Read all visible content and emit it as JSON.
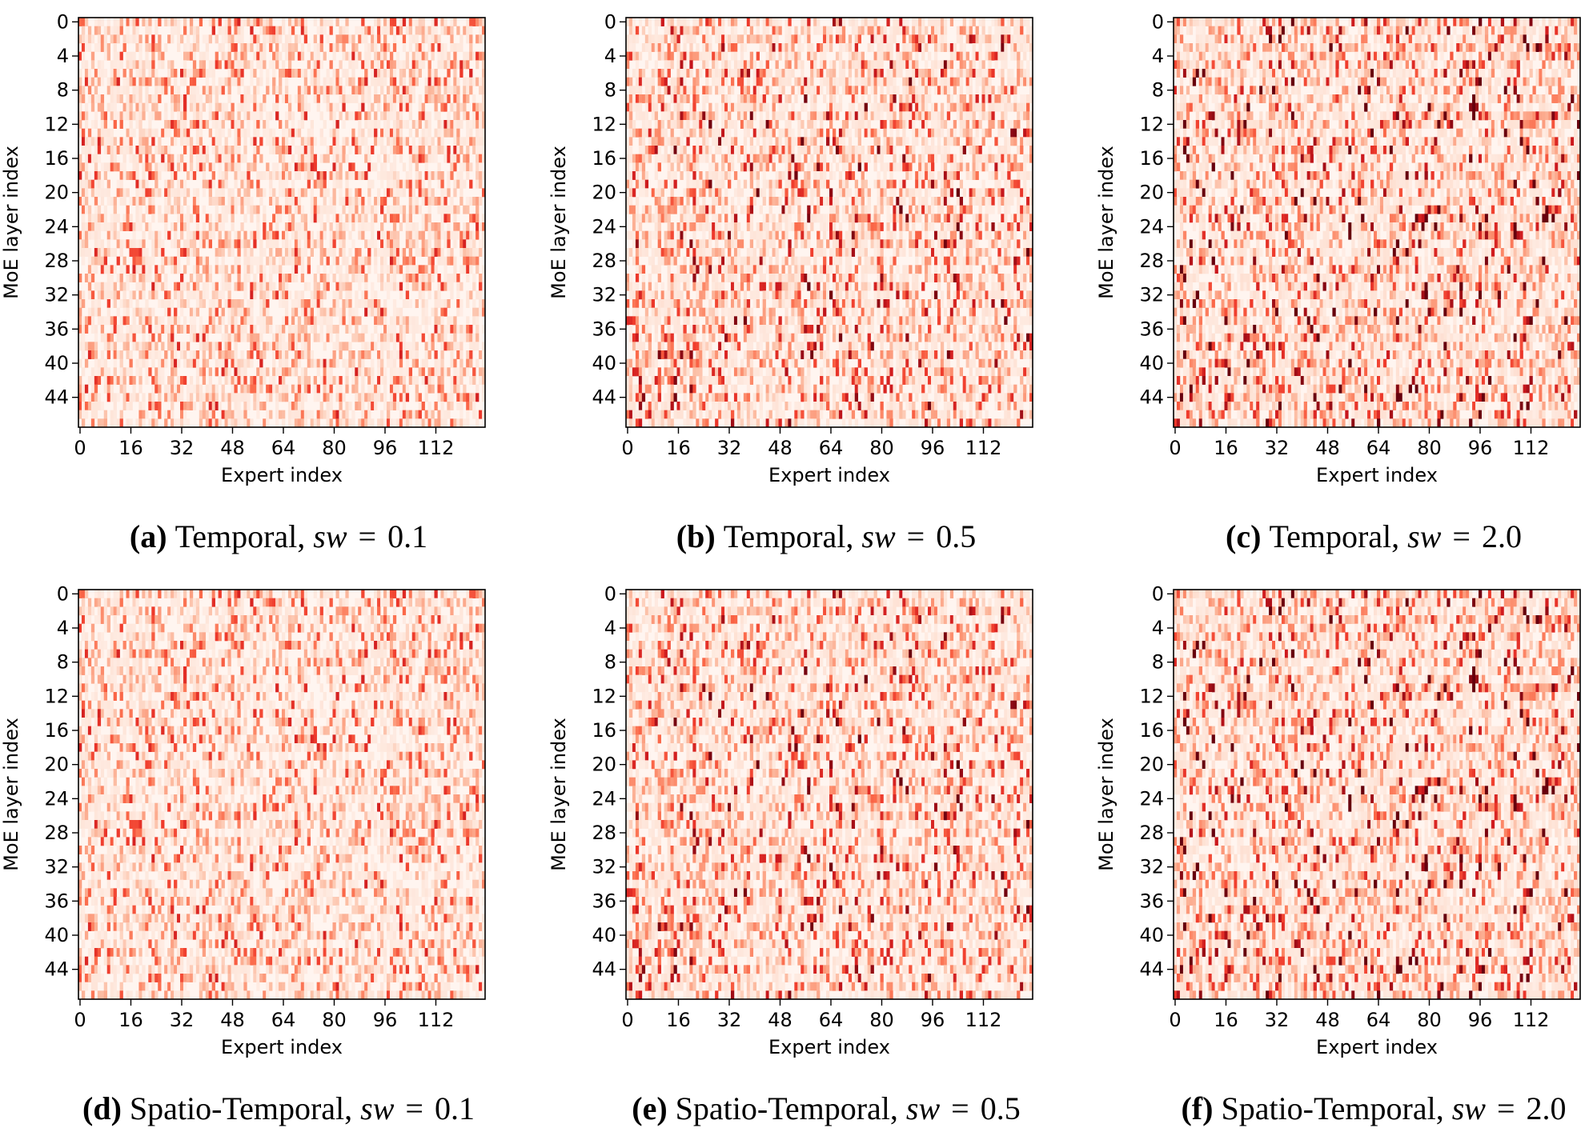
{
  "chart_data": [
    {
      "type": "heatmap",
      "caption": {
        "letter": "(a)",
        "text": "Temporal,",
        "math_var": "sw",
        "math_eq": "=",
        "math_val": "0.1"
      },
      "xlabel": "Expert index",
      "ylabel": "MoE layer index",
      "x_ticks": [
        "0",
        "16",
        "32",
        "48",
        "64",
        "80",
        "96",
        "112"
      ],
      "y_ticks": [
        "0",
        "4",
        "8",
        "12",
        "16",
        "20",
        "24",
        "28",
        "32",
        "36",
        "40",
        "44"
      ],
      "n_experts": 128,
      "n_layers": 48,
      "colormap": "Reds",
      "pattern_seed": 11,
      "intensity": 0.85
    },
    {
      "type": "heatmap",
      "caption": {
        "letter": "(b)",
        "text": "Temporal,",
        "math_var": "sw",
        "math_eq": "=",
        "math_val": "0.5"
      },
      "xlabel": "Expert index",
      "ylabel": "MoE layer index",
      "x_ticks": [
        "0",
        "16",
        "32",
        "48",
        "64",
        "80",
        "96",
        "112"
      ],
      "y_ticks": [
        "0",
        "4",
        "8",
        "12",
        "16",
        "20",
        "24",
        "28",
        "32",
        "36",
        "40",
        "44"
      ],
      "n_experts": 128,
      "n_layers": 48,
      "colormap": "Reds",
      "pattern_seed": 23,
      "intensity": 1.0
    },
    {
      "type": "heatmap",
      "caption": {
        "letter": "(c)",
        "text": "Temporal,",
        "math_var": "sw",
        "math_eq": "=",
        "math_val": "2.0"
      },
      "xlabel": "Expert index",
      "ylabel": "MoE layer index",
      "x_ticks": [
        "0",
        "16",
        "32",
        "48",
        "64",
        "80",
        "96",
        "112"
      ],
      "y_ticks": [
        "0",
        "4",
        "8",
        "12",
        "16",
        "20",
        "24",
        "28",
        "32",
        "36",
        "40",
        "44"
      ],
      "n_experts": 128,
      "n_layers": 48,
      "colormap": "Reds",
      "pattern_seed": 37,
      "intensity": 1.1
    },
    {
      "type": "heatmap",
      "caption": {
        "letter": "(d)",
        "text": "Spatio-Temporal,",
        "math_var": "sw",
        "math_eq": "=",
        "math_val": "0.1"
      },
      "xlabel": "Expert index",
      "ylabel": "MoE layer index",
      "x_ticks": [
        "0",
        "16",
        "32",
        "48",
        "64",
        "80",
        "96",
        "112"
      ],
      "y_ticks": [
        "0",
        "4",
        "8",
        "12",
        "16",
        "20",
        "24",
        "28",
        "32",
        "36",
        "40",
        "44"
      ],
      "n_experts": 128,
      "n_layers": 48,
      "colormap": "Reds",
      "pattern_seed": 11,
      "intensity": 0.85
    },
    {
      "type": "heatmap",
      "caption": {
        "letter": "(e)",
        "text": "Spatio-Temporal,",
        "math_var": "sw",
        "math_eq": "=",
        "math_val": "0.5"
      },
      "xlabel": "Expert index",
      "ylabel": "MoE layer index",
      "x_ticks": [
        "0",
        "16",
        "32",
        "48",
        "64",
        "80",
        "96",
        "112"
      ],
      "y_ticks": [
        "0",
        "4",
        "8",
        "12",
        "16",
        "20",
        "24",
        "28",
        "32",
        "36",
        "40",
        "44"
      ],
      "n_experts": 128,
      "n_layers": 48,
      "colormap": "Reds",
      "pattern_seed": 23,
      "intensity": 1.0
    },
    {
      "type": "heatmap",
      "caption": {
        "letter": "(f)",
        "text": "Spatio-Temporal,",
        "math_var": "sw",
        "math_eq": "=",
        "math_val": "2.0"
      },
      "xlabel": "Expert index",
      "ylabel": "MoE layer index",
      "x_ticks": [
        "0",
        "16",
        "32",
        "48",
        "64",
        "80",
        "96",
        "112"
      ],
      "y_ticks": [
        "0",
        "4",
        "8",
        "12",
        "16",
        "20",
        "24",
        "28",
        "32",
        "36",
        "40",
        "44"
      ],
      "n_experts": 128,
      "n_layers": 48,
      "colormap": "Reds",
      "pattern_seed": 37,
      "intensity": 1.1
    }
  ]
}
